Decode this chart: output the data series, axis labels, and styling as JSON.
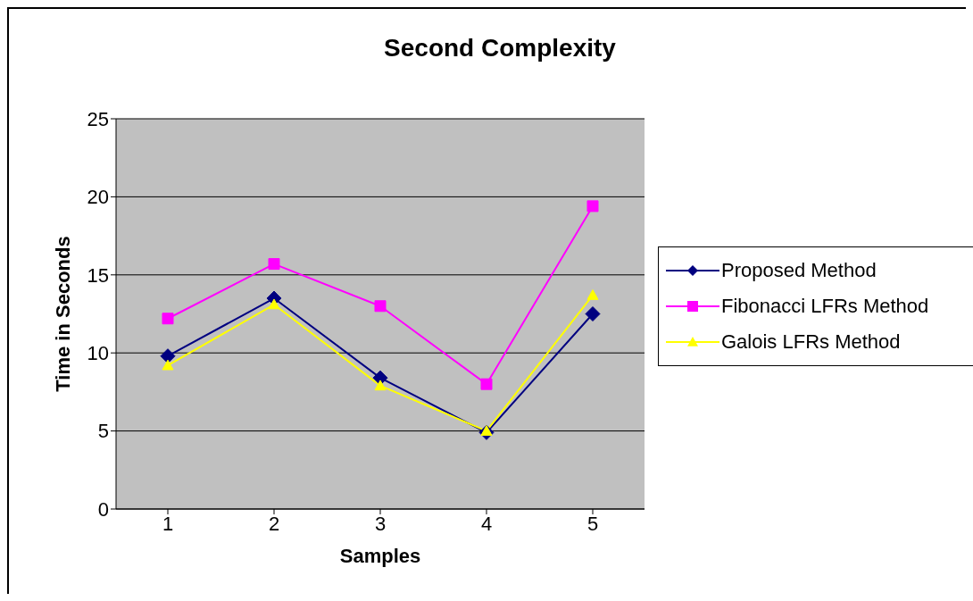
{
  "chart_data": {
    "type": "line",
    "title": "Second Complexity",
    "xlabel": "Samples",
    "ylabel": "Time in Seconds",
    "categories": [
      "1",
      "2",
      "3",
      "4",
      "5"
    ],
    "series": [
      {
        "name": "Proposed Method",
        "color": "#000080",
        "marker": "diamond",
        "values": [
          9.8,
          13.5,
          8.4,
          4.9,
          12.5
        ]
      },
      {
        "name": "Fibonacci LFRs Method",
        "color": "#ff00ff",
        "marker": "square",
        "values": [
          12.2,
          15.7,
          13.0,
          8.0,
          19.4
        ]
      },
      {
        "name": "Galois LFRs Method",
        "color": "#ffff00",
        "marker": "triangle",
        "values": [
          9.2,
          13.1,
          7.9,
          5.0,
          13.7
        ]
      }
    ],
    "ylim": [
      0,
      25
    ],
    "yticks": [
      0,
      5,
      10,
      15,
      20,
      25
    ],
    "grid": "y",
    "legend": "right",
    "line_style": "solid"
  }
}
